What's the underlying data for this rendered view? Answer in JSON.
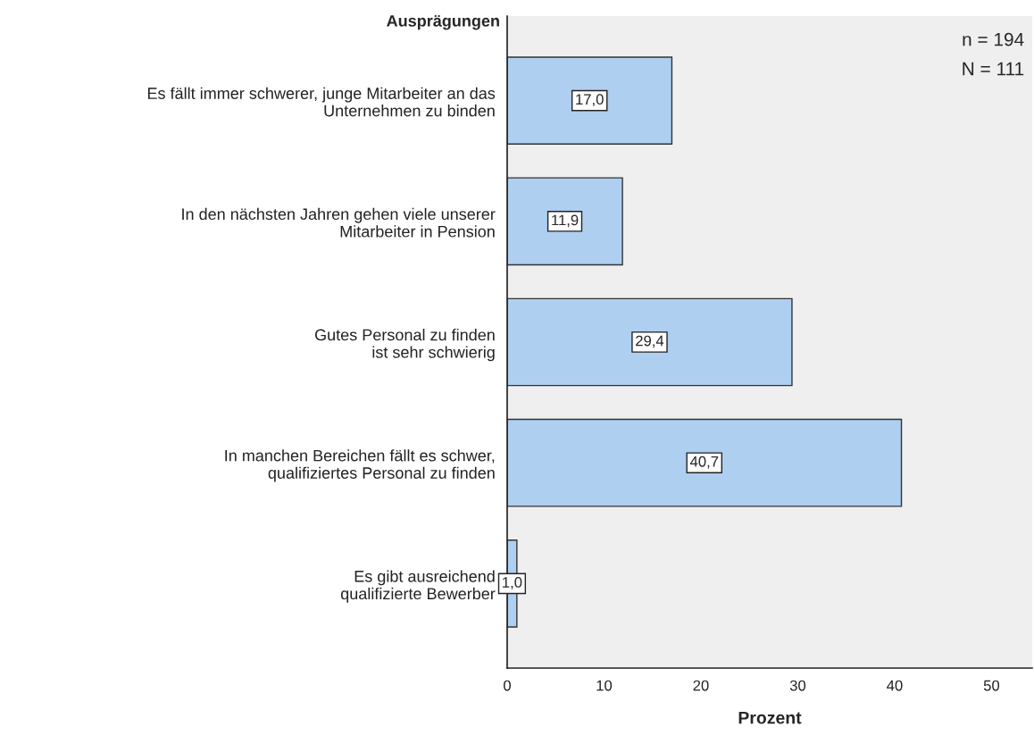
{
  "chart_data": {
    "type": "bar",
    "orientation": "horizontal",
    "ylabel": "Ausprägungen",
    "xlabel": "Prozent",
    "categories": [
      "Es fällt immer schwerer, junge Mitarbeiter an das\nUnternehmen zu binden",
      "In den nächsten Jahren gehen viele unserer\nMitarbeiter in Pension",
      "Gutes Personal zu finden\nist sehr schwierig",
      "In manchen Bereichen fällt es schwer,\nqualifiziertes Personal zu finden",
      "Es gibt ausreichend\nqualifizierte Bewerber"
    ],
    "values": [
      17.0,
      11.9,
      29.4,
      40.7,
      1.0
    ],
    "value_labels": [
      "17,0",
      "11,9",
      "29,4",
      "40,7",
      "1,0"
    ],
    "color": "#aecff0",
    "xlim": [
      0,
      54.2
    ],
    "xticks": [
      0,
      10,
      20,
      30,
      40,
      50
    ],
    "annotations": [
      "n = 194",
      "N = 111"
    ],
    "grid": false,
    "legend": false
  }
}
